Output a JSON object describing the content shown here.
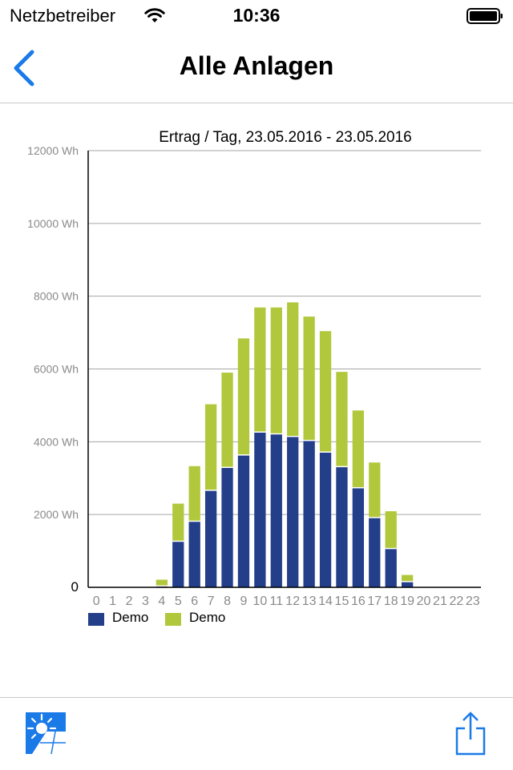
{
  "status_bar": {
    "carrier": "Netzbetreiber",
    "time": "10:36"
  },
  "nav": {
    "title": "Alle Anlagen",
    "back_icon": "chevron-left-icon"
  },
  "toolbar": {
    "left_icon": "solar-panel-icon",
    "right_icon": "share-icon"
  },
  "colors": {
    "accent": "#1a7ae8",
    "series_1": "#233f8a",
    "series_2": "#b2c83c",
    "grid": "#a6a6a6"
  },
  "chart_data": {
    "type": "bar",
    "stacked": true,
    "title": "Ertrag / Tag, 23.05.2016 - 23.05.2016",
    "categories": [
      "0",
      "1",
      "2",
      "3",
      "4",
      "5",
      "6",
      "7",
      "8",
      "9",
      "10",
      "11",
      "12",
      "13",
      "14",
      "15",
      "16",
      "17",
      "18",
      "19",
      "20",
      "21",
      "22",
      "23"
    ],
    "yticks": [
      "0",
      "2000 Wh",
      "4000 Wh",
      "6000 Wh",
      "8000 Wh",
      "10000 Wh",
      "12000 Wh"
    ],
    "ylim": [
      0,
      12000
    ],
    "grid": true,
    "legend_position": "bottom-left",
    "series": [
      {
        "name": "Demo",
        "color": "#233f8a",
        "values": [
          0,
          0,
          0,
          0,
          20,
          1250,
          1800,
          2650,
          3280,
          3620,
          4250,
          4200,
          4130,
          4020,
          3700,
          3300,
          2720,
          1900,
          1050,
          140,
          0,
          0,
          0,
          0
        ]
      },
      {
        "name": "Demo",
        "color": "#b2c83c",
        "values": [
          0,
          0,
          0,
          0,
          190,
          1050,
          1530,
          2380,
          2620,
          3220,
          3440,
          3490,
          3700,
          3420,
          3340,
          2620,
          2140,
          1530,
          1040,
          200,
          0,
          0,
          0,
          0
        ]
      }
    ]
  }
}
